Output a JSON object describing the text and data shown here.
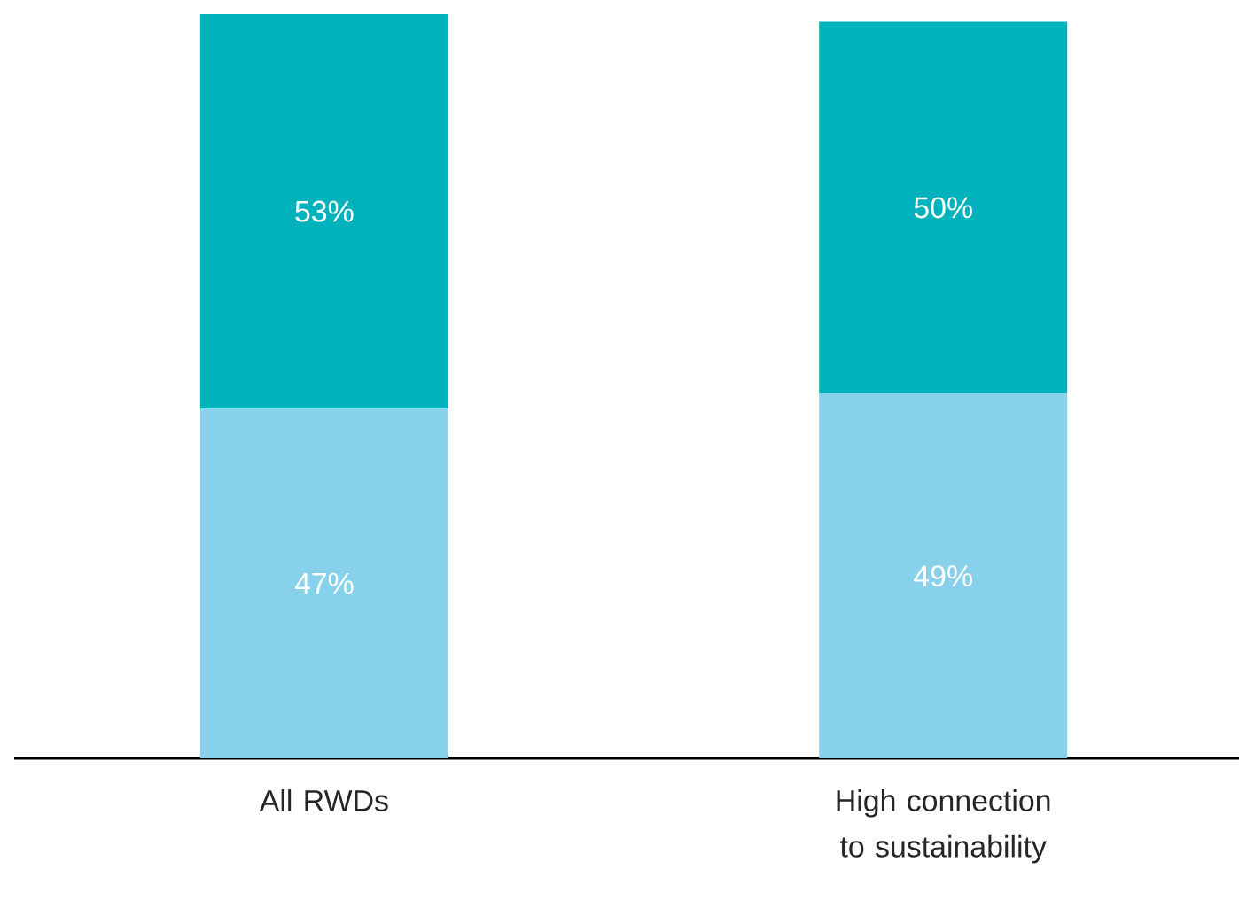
{
  "chart_data": {
    "type": "bar",
    "stacked": true,
    "categories": [
      "All RWDs",
      "High connection to sustainability"
    ],
    "series": [
      {
        "color": "#87d1ea",
        "values": [
          47,
          49
        ],
        "value_labels": [
          "47%",
          "49%"
        ]
      },
      {
        "color": "#00b2bb",
        "values": [
          53,
          50
        ],
        "value_labels": [
          "53%",
          "50%"
        ]
      }
    ],
    "ylim": [
      0,
      100
    ],
    "tick_labels": "x"
  }
}
